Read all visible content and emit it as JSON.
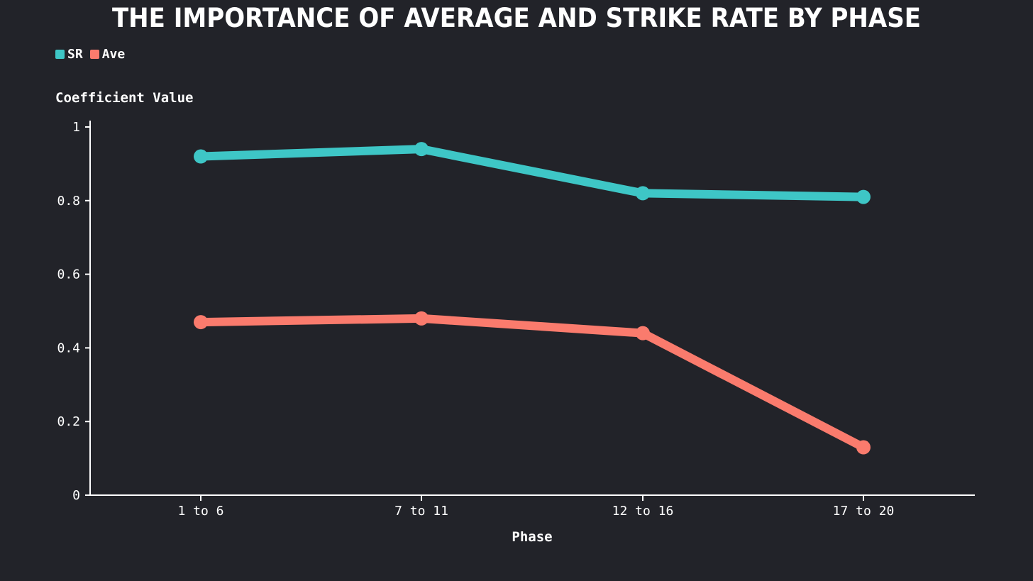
{
  "chart_data": {
    "type": "line",
    "title": "The Importance of Average and Strike Rate  by Phase",
    "xlabel": "Phase",
    "ylabel": "Coefficient Value",
    "categories": [
      "1 to 6",
      "7 to 11",
      "12 to 16",
      "17 to 20"
    ],
    "ylim": [
      0,
      1
    ],
    "yticks": [
      "0",
      "0.2",
      "0.4",
      "0.6",
      "0.8",
      "1"
    ],
    "grid": false,
    "legend_position": "top-left",
    "series": [
      {
        "name": "SR",
        "color": "#3ec6c6",
        "values": [
          0.92,
          0.94,
          0.82,
          0.81
        ]
      },
      {
        "name": "Ave",
        "color": "#fa7b6d",
        "values": [
          0.47,
          0.48,
          0.44,
          0.13
        ]
      }
    ]
  }
}
